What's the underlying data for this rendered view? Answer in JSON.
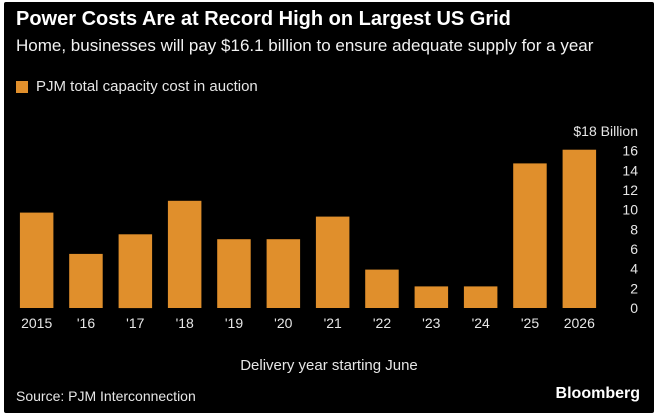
{
  "title": "Power Costs Are at Record High on Largest US Grid",
  "subtitle": "Home, businesses will pay $16.1 billion to ensure adequate supply for a year",
  "source": "Source: PJM Interconnection",
  "brand": "Bloomberg",
  "colors": {
    "background": "#000000",
    "bar": "#e08f2c",
    "text": "#ffffff"
  },
  "chart_data": {
    "type": "bar",
    "title": "Power Costs Are at Record High on Largest US Grid",
    "subtitle": "Home, businesses will pay $16.1 billion to ensure adequate supply for a year",
    "xlabel": "Delivery year starting June",
    "ylabel": "",
    "unit_label": "$18 Billion",
    "categories": [
      "2015",
      "'16",
      "'17",
      "'18",
      "'19",
      "'20",
      "'21",
      "'22",
      "'23",
      "'24",
      "'25",
      "2026"
    ],
    "series": [
      {
        "name": "PJM total capacity cost in auction",
        "values": [
          9.7,
          5.5,
          7.5,
          10.9,
          7.0,
          7.0,
          9.3,
          3.9,
          2.2,
          2.2,
          14.7,
          16.1
        ]
      }
    ],
    "ylim": [
      0,
      18
    ],
    "yticks": [
      0,
      2,
      4,
      6,
      8,
      10,
      12,
      14,
      16,
      18
    ],
    "grid": false,
    "axis_position": "right",
    "legend_position": "top-left"
  }
}
